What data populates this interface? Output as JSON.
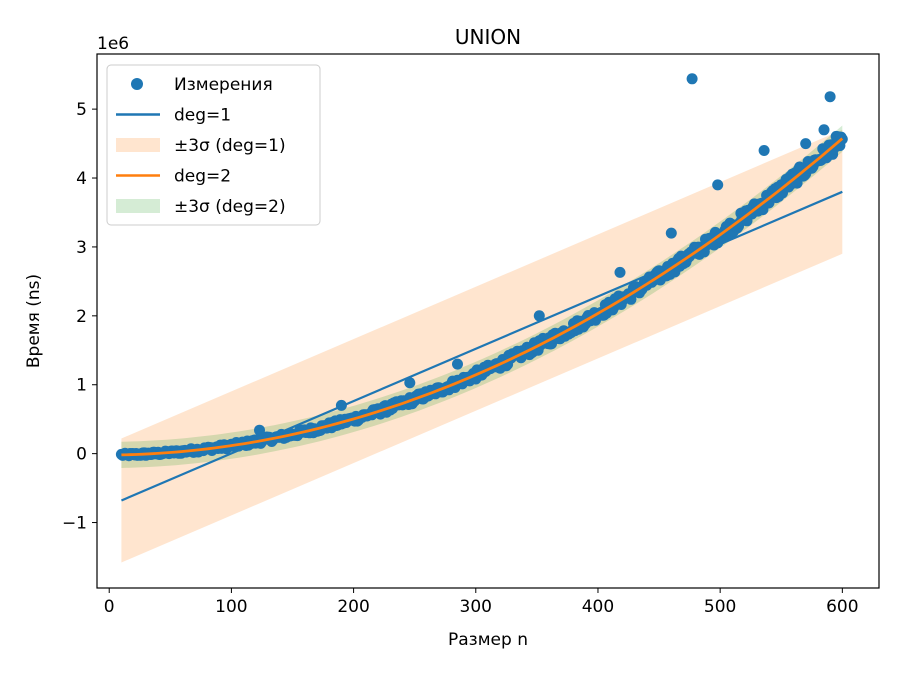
{
  "chart_data": {
    "type": "scatter",
    "title": "UNION",
    "xlabel": "Размер n",
    "ylabel": "Время (ns)",
    "y_offset_label": "1e6",
    "xlim": [
      -10,
      630
    ],
    "ylim": [
      -1.95,
      5.8
    ],
    "x_ticks": [
      0,
      100,
      200,
      300,
      400,
      500,
      600
    ],
    "y_ticks": [
      -1,
      0,
      1,
      2,
      3,
      4,
      5
    ],
    "y_tick_labels": [
      "−1",
      "0",
      "1",
      "2",
      "3",
      "4",
      "5"
    ],
    "grid": false,
    "legend_position": "upper-left",
    "legend": [
      {
        "label": "Измерения",
        "kind": "marker",
        "color": "#1f77b4"
      },
      {
        "label": "deg=1",
        "kind": "line",
        "color": "#1f77b4"
      },
      {
        "label": "±3σ (deg=1)",
        "kind": "patch",
        "color": "#ff7f0e"
      },
      {
        "label": "deg=2",
        "kind": "line",
        "color": "#ff7f0e"
      },
      {
        "label": "±3σ (deg=2)",
        "kind": "patch",
        "color": "#2ca02c"
      }
    ],
    "fit_deg1": {
      "x": [
        10,
        600
      ],
      "y": [
        -0.68,
        3.8
      ],
      "color": "#1f77b4"
    },
    "band_deg1": {
      "x": [
        10,
        600
      ],
      "lower": [
        -1.58,
        2.9
      ],
      "upper": [
        0.22,
        4.7
      ],
      "color": "#ff7f0e",
      "alpha": 0.2
    },
    "fit_deg2": {
      "a": 1.259e-05,
      "b": 0.0001,
      "c": -0.02,
      "x_range": [
        10,
        600
      ],
      "color": "#ff7f0e"
    },
    "band_deg2": {
      "halfwidth": 0.19,
      "color": "#2ca02c",
      "alpha": 0.2
    },
    "measurements": {
      "color": "#1f77b4",
      "x_range": [
        10,
        600
      ],
      "points_count": 591,
      "outliers": [
        {
          "x": 477,
          "y": 5.44
        },
        {
          "x": 590,
          "y": 5.18
        },
        {
          "x": 536,
          "y": 4.4
        },
        {
          "x": 585,
          "y": 4.7
        },
        {
          "x": 570,
          "y": 4.5
        },
        {
          "x": 498,
          "y": 3.9
        },
        {
          "x": 460,
          "y": 3.2
        },
        {
          "x": 418,
          "y": 2.63
        },
        {
          "x": 352,
          "y": 2.0
        },
        {
          "x": 246,
          "y": 1.03
        },
        {
          "x": 285,
          "y": 1.3
        },
        {
          "x": 190,
          "y": 0.7
        },
        {
          "x": 123,
          "y": 0.34
        }
      ]
    }
  }
}
